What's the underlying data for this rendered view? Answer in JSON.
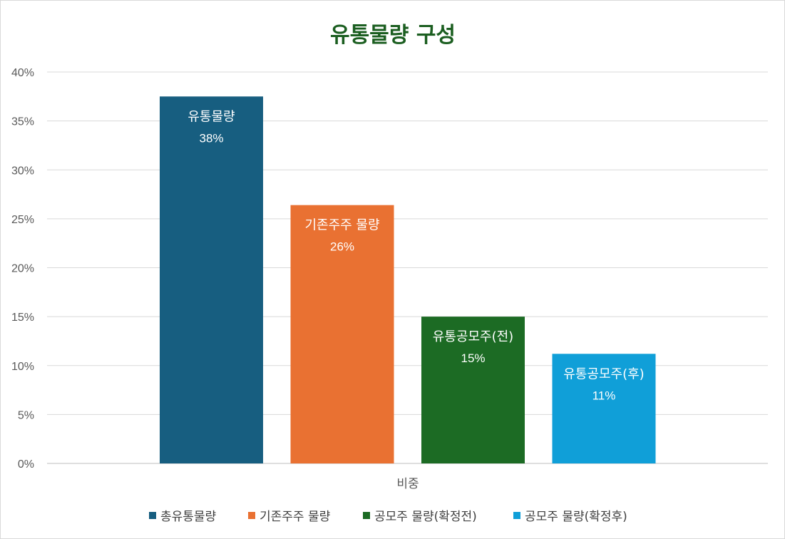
{
  "colors": {
    "title": "#1b5e20",
    "grid": "#d9d9d9",
    "axis": "#bfbfbf"
  },
  "chart_data": {
    "type": "bar",
    "title": "유통물량 구성",
    "xlabel": "",
    "ylabel": "",
    "categories": [
      "비중"
    ],
    "ylim": [
      0,
      0.4
    ],
    "y_ticks": [
      "0%",
      "5%",
      "10%",
      "15%",
      "20%",
      "25%",
      "30%",
      "35%",
      "40%"
    ],
    "grid": true,
    "legend_position": "bottom",
    "series": [
      {
        "name": "총유통물량",
        "bar_label": "유통물량",
        "values": [
          0.375
        ],
        "data_label": "38%",
        "color": "#175e80"
      },
      {
        "name": "기존주주 물량",
        "bar_label": "기존주주 물량",
        "values": [
          0.264
        ],
        "data_label": "26%",
        "color": "#e97132"
      },
      {
        "name": "공모주 물량(확정전)",
        "bar_label": "유통공모주(전)",
        "values": [
          0.15
        ],
        "data_label": "15%",
        "color": "#1c6b24"
      },
      {
        "name": "공모주 물량(확정후)",
        "bar_label": "유통공모주(후)",
        "values": [
          0.112
        ],
        "data_label": "11%",
        "color": "#109fd8"
      }
    ]
  }
}
